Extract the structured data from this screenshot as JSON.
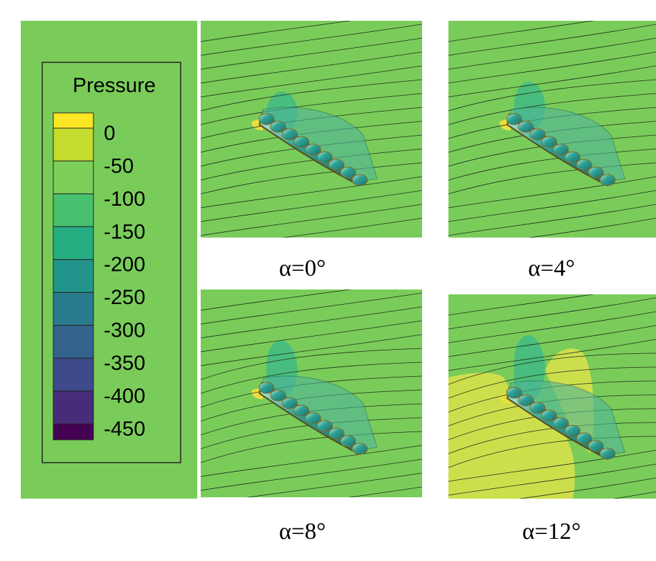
{
  "colorbar": {
    "title": "Pressure",
    "labels": [
      0,
      -50,
      -100,
      -150,
      -200,
      -250,
      -300,
      -350,
      -400,
      -450
    ],
    "colors": [
      "#fde725",
      "#c4dc2e",
      "#7ccf5a",
      "#48c16e",
      "#26ad81",
      "#21958b",
      "#2a7b8e",
      "#33638d",
      "#3e4a89",
      "#472c7a",
      "#440154"
    ]
  },
  "panels": [
    {
      "caption": "α=0°"
    },
    {
      "caption": "α=4°"
    },
    {
      "caption": "α=8°"
    },
    {
      "caption": "α=12°"
    }
  ]
}
